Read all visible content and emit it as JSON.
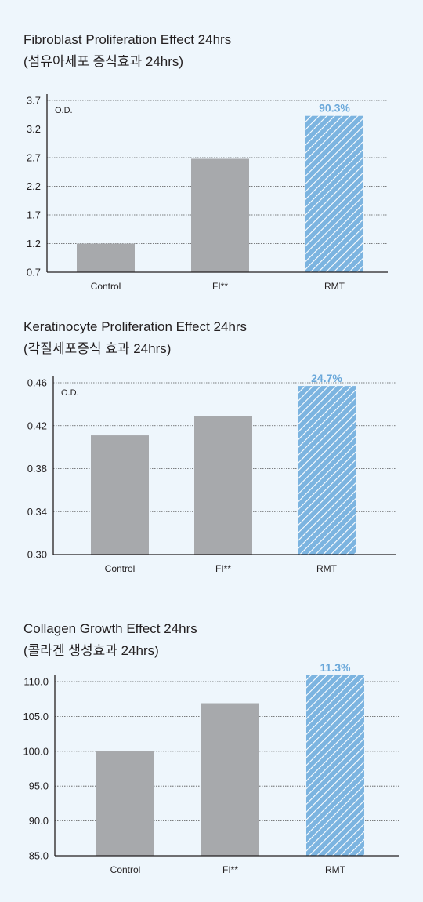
{
  "colors": {
    "background": "#eef6fc",
    "bar_gray": "#a7a9ac",
    "highlight_blue": "#7cb4e0",
    "highlight_text": "#6aa8da",
    "axis": "#231f20"
  },
  "chart_data": [
    {
      "type": "bar",
      "title": "Fibroblast Proliferation Effect 24hrs",
      "subtitle": "(섬유아세포 증식효과 24hrs)",
      "ylabel": "O.D.",
      "categories": [
        "Control",
        "FI**",
        "RMT"
      ],
      "values": [
        1.2,
        2.68,
        3.43
      ],
      "ylim": [
        0.7,
        3.7
      ],
      "yticks": [
        "0.7",
        "1.2",
        "1.7",
        "2.2",
        "2.7",
        "3.2",
        "3.7"
      ],
      "highlight_index": 2,
      "highlight_label": "90.3%",
      "grid": true,
      "grid_style": "dotted horizontal"
    },
    {
      "type": "bar",
      "title": "Keratinocyte Proliferation Effect 24hrs",
      "subtitle": "(각질세포증식 효과 24hrs)",
      "ylabel": "O.D.",
      "categories": [
        "Control",
        "FI**",
        "RMT"
      ],
      "values": [
        0.411,
        0.429,
        0.457
      ],
      "ylim": [
        0.3,
        0.46
      ],
      "yticks": [
        "0.30",
        "0.34",
        "0.38",
        "0.42",
        "0.46"
      ],
      "highlight_index": 2,
      "highlight_label": "24.7%",
      "grid": true,
      "grid_style": "dotted horizontal"
    },
    {
      "type": "bar",
      "title": "Collagen Growth Effect 24hrs",
      "subtitle": "(콜라겐 생성효과 24hrs)",
      "ylabel": "",
      "categories": [
        "Control",
        "FI**",
        "RMT"
      ],
      "values": [
        100.0,
        106.9,
        110.9
      ],
      "ylim": [
        85.0,
        110.0
      ],
      "yticks": [
        "85.0",
        "90.0",
        "95.0",
        "100.0",
        "105.0",
        "110.0"
      ],
      "highlight_index": 2,
      "highlight_label": "11.3%",
      "grid": true,
      "grid_style": "dotted horizontal"
    }
  ]
}
